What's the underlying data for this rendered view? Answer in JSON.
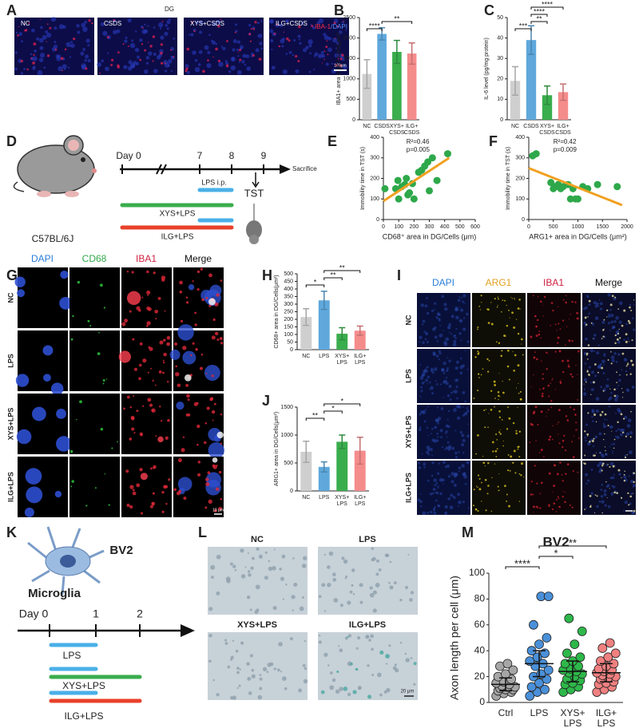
{
  "panel_labels": [
    "A",
    "B",
    "C",
    "D",
    "E",
    "F",
    "G",
    "H",
    "I",
    "J",
    "K",
    "L",
    "M"
  ],
  "panel_A": {
    "region": "DG",
    "groups": [
      "NC",
      "CSDS",
      "XYS+CSDS",
      "ILG+CSDS"
    ],
    "stain": [
      "IBA-1",
      "/DAPI"
    ],
    "scale_bar": "100μm"
  },
  "panel_D": {
    "strain": "C57BL/6J",
    "days": [
      "Day 0",
      "7",
      "8",
      "9"
    ],
    "end": "Sacrifice",
    "lps": "LPS i.p.",
    "test": "TST",
    "treatments": [
      "XYS+LPS",
      "ILG+LPS"
    ]
  },
  "panel_G": {
    "channels": [
      "DAPI",
      "CD68",
      "IBA1",
      "Merge"
    ],
    "groups": [
      "NC",
      "LPS",
      "XYS+LPS",
      "ILG+LPS"
    ],
    "scale_bar": "10 μm"
  },
  "panel_I": {
    "channels": [
      "DAPI",
      "ARG1",
      "IBA1",
      "Merge"
    ],
    "groups": [
      "NC",
      "LPS",
      "XYS+LPS",
      "ILG+LPS"
    ]
  },
  "panel_K": {
    "cell_line": "BV2",
    "cell_type": "Microglia",
    "days": [
      "Day 0",
      "1",
      "2"
    ],
    "treatments": [
      "LPS",
      "XYS+LPS",
      "ILG+LPS"
    ]
  },
  "panel_L": {
    "groups": [
      "NC",
      "LPS",
      "XYS+LPS",
      "ILG+LPS"
    ],
    "scale_bar": "20 μm"
  },
  "chart_data": [
    {
      "type": "bar",
      "y_label": "IBA1+ area in DG/ Cells(μm²)",
      "categories": [
        [
          "NC"
        ],
        [
          "CSDS"
        ],
        [
          "XYS+",
          "CSDS"
        ],
        [
          "ILG+",
          "CSDS"
        ]
      ],
      "values": [
        1120,
        2100,
        1660,
        1620
      ],
      "errors": [
        350,
        150,
        280,
        260
      ],
      "colors": [
        "#cfcfcf",
        "#5fa8dc",
        "#3aad4d",
        "#f58c8c"
      ],
      "ylim": [
        0,
        2500
      ],
      "yticks": [
        0,
        500,
        1000,
        1500,
        2000,
        2500
      ],
      "significance": [
        {
          "text": "****",
          "between": [
            "NC",
            "CSDS"
          ]
        },
        {
          "text": "**",
          "between": [
            "CSDS",
            "ILG+ CSDS"
          ]
        }
      ]
    },
    {
      "type": "bar",
      "y_label": "IL-6 level (pg/mg protein)",
      "categories": [
        [
          "NC"
        ],
        [
          "CSDS"
        ],
        [
          "XYS+",
          "CSDS"
        ],
        [
          "ILG+",
          "CSDS"
        ]
      ],
      "values": [
        19,
        39,
        12,
        13.5
      ],
      "errors": [
        7,
        7,
        4.5,
        4
      ],
      "colors": [
        "#cfcfcf",
        "#5fa8dc",
        "#3aad4d",
        "#f58c8c"
      ],
      "ylim": [
        0,
        50
      ],
      "yticks": [
        0,
        10,
        20,
        30,
        40,
        50
      ],
      "significance": [
        {
          "text": "***",
          "between": [
            "NC",
            "CSDS"
          ]
        },
        {
          "text": "**",
          "between": [
            "CSDS",
            "XYS+ CSDS"
          ]
        },
        {
          "text": "****",
          "between": [
            "CSDS",
            "XYS+ CSDS"
          ]
        },
        {
          "text": "****",
          "between": [
            "CSDS",
            "ILG+ CSDS"
          ]
        }
      ]
    },
    {
      "type": "scatter",
      "x_label": "CD68⁺ area in DG/Cells (μm)",
      "y_label": "Immobility time in TST (s)",
      "r2": "R²=0.46",
      "p": "p=0.005",
      "color": "#2ea84a",
      "fit_color": "#f0a020",
      "x": [
        10,
        80,
        95,
        100,
        120,
        140,
        150,
        160,
        170,
        190,
        200,
        230,
        250,
        270,
        290,
        300,
        320,
        350,
        420
      ],
      "y": [
        150,
        150,
        190,
        100,
        160,
        170,
        200,
        120,
        130,
        175,
        100,
        230,
        240,
        260,
        280,
        140,
        300,
        190,
        320
      ],
      "fit": {
        "x": [
          0,
          430
        ],
        "y": [
          90,
          300
        ]
      },
      "xlim": [
        0,
        600
      ],
      "xticks": [
        0,
        100,
        200,
        300,
        400,
        500,
        600
      ],
      "ylim": [
        0,
        400
      ],
      "yticks": [
        0,
        100,
        200,
        300,
        400
      ]
    },
    {
      "type": "scatter",
      "x_label": "ARG1+ area in DG/Cells (μm²)",
      "y_label": "Immobility time in TST (s)",
      "r2": "R²=0.42",
      "p": "p=0.009",
      "color": "#2ea84a",
      "fit_color": "#f0a020",
      "x": [
        80,
        150,
        450,
        500,
        550,
        600,
        650,
        700,
        800,
        850,
        900,
        950,
        1000,
        1100,
        1200,
        1400,
        1800
      ],
      "y": [
        310,
        320,
        180,
        150,
        160,
        170,
        150,
        160,
        170,
        100,
        150,
        100,
        100,
        160,
        150,
        170,
        160
      ],
      "fit": {
        "x": [
          0,
          1900
        ],
        "y": [
          250,
          70
        ]
      },
      "xlim": [
        0,
        2000
      ],
      "xticks": [
        0,
        500,
        1000,
        1500,
        2000
      ],
      "ylim": [
        0,
        400
      ],
      "yticks": [
        0,
        100,
        200,
        300,
        400
      ]
    },
    {
      "type": "bar",
      "y_label": "CD68+ area in DG/Cells(μm²)",
      "categories": [
        [
          "NC"
        ],
        [
          "LPS"
        ],
        [
          "XYS+",
          "LPS"
        ],
        [
          "ILG+",
          "LPS"
        ]
      ],
      "values": [
        215,
        325,
        105,
        125
      ],
      "errors": [
        55,
        60,
        40,
        30
      ],
      "colors": [
        "#cfcfcf",
        "#5fa8dc",
        "#3aad4d",
        "#f58c8c"
      ],
      "ylim": [
        0,
        500
      ],
      "yticks": [
        0,
        50,
        100,
        150,
        200,
        250,
        300,
        350,
        400,
        450,
        500
      ],
      "significance": [
        {
          "text": "*",
          "between": [
            "NC",
            "LPS"
          ]
        },
        {
          "text": "**",
          "between": [
            "LPS",
            "XYS+ LPS"
          ]
        },
        {
          "text": "**",
          "between": [
            "LPS",
            "ILG+ LPS"
          ]
        }
      ]
    },
    {
      "type": "bar",
      "y_label": "ARG1+ area in DG/Cells(μm²)",
      "categories": [
        [
          "NC"
        ],
        [
          "LPS"
        ],
        [
          "XYS+",
          "LPS"
        ],
        [
          "ILG+",
          "LPS"
        ]
      ],
      "values": [
        700,
        430,
        880,
        720
      ],
      "errors": [
        190,
        90,
        120,
        240
      ],
      "colors": [
        "#cfcfcf",
        "#5fa8dc",
        "#3aad4d",
        "#f58c8c"
      ],
      "ylim": [
        0,
        1500
      ],
      "yticks": [
        0,
        500,
        1000,
        1500
      ],
      "significance": [
        {
          "text": "**",
          "between": [
            "NC",
            "LPS"
          ]
        },
        {
          "text": "*",
          "between": [
            "LPS",
            "XYS+ LPS"
          ]
        },
        {
          "text": "*",
          "between": [
            "LPS",
            "ILG+ LPS"
          ]
        }
      ]
    },
    {
      "type": "strip",
      "title": "BV2",
      "y_label": "Axon length per cell (μm)",
      "categories": [
        [
          "Ctrl"
        ],
        [
          "LPS"
        ],
        [
          "XYS+",
          "LPS"
        ],
        [
          "ILG+",
          "LPS"
        ]
      ],
      "colors": [
        "#a6a6a6",
        "#4a90d9",
        "#2eb84a",
        "#f08080"
      ],
      "values": [
        [
          5,
          7,
          8,
          9,
          10,
          10,
          11,
          12,
          12,
          13,
          14,
          15,
          16,
          18,
          20,
          22,
          25,
          28,
          30
        ],
        [
          5,
          8,
          10,
          12,
          15,
          18,
          20,
          22,
          25,
          28,
          30,
          32,
          35,
          38,
          40,
          45,
          50,
          60,
          82,
          82
        ],
        [
          8,
          10,
          12,
          14,
          15,
          17,
          18,
          20,
          22,
          23,
          24,
          25,
          26,
          28,
          30,
          32,
          35,
          38,
          45,
          55,
          65
        ],
        [
          8,
          10,
          12,
          14,
          15,
          16,
          18,
          19,
          20,
          21,
          22,
          23,
          24,
          25,
          26,
          28,
          30,
          32,
          35,
          38,
          42,
          46
        ]
      ],
      "center": [
        14,
        30,
        24,
        23
      ],
      "error": [
        5,
        10,
        8,
        7
      ],
      "ylim": [
        0,
        100
      ],
      "yticks": [
        0,
        20,
        40,
        60,
        80,
        100
      ],
      "significance": [
        {
          "text": "****",
          "between": [
            "Ctrl",
            "LPS"
          ]
        },
        {
          "text": "*",
          "between": [
            "LPS",
            "XYS+ LPS"
          ]
        },
        {
          "text": "**",
          "between": [
            "LPS",
            "ILG+ LPS"
          ]
        }
      ]
    }
  ]
}
